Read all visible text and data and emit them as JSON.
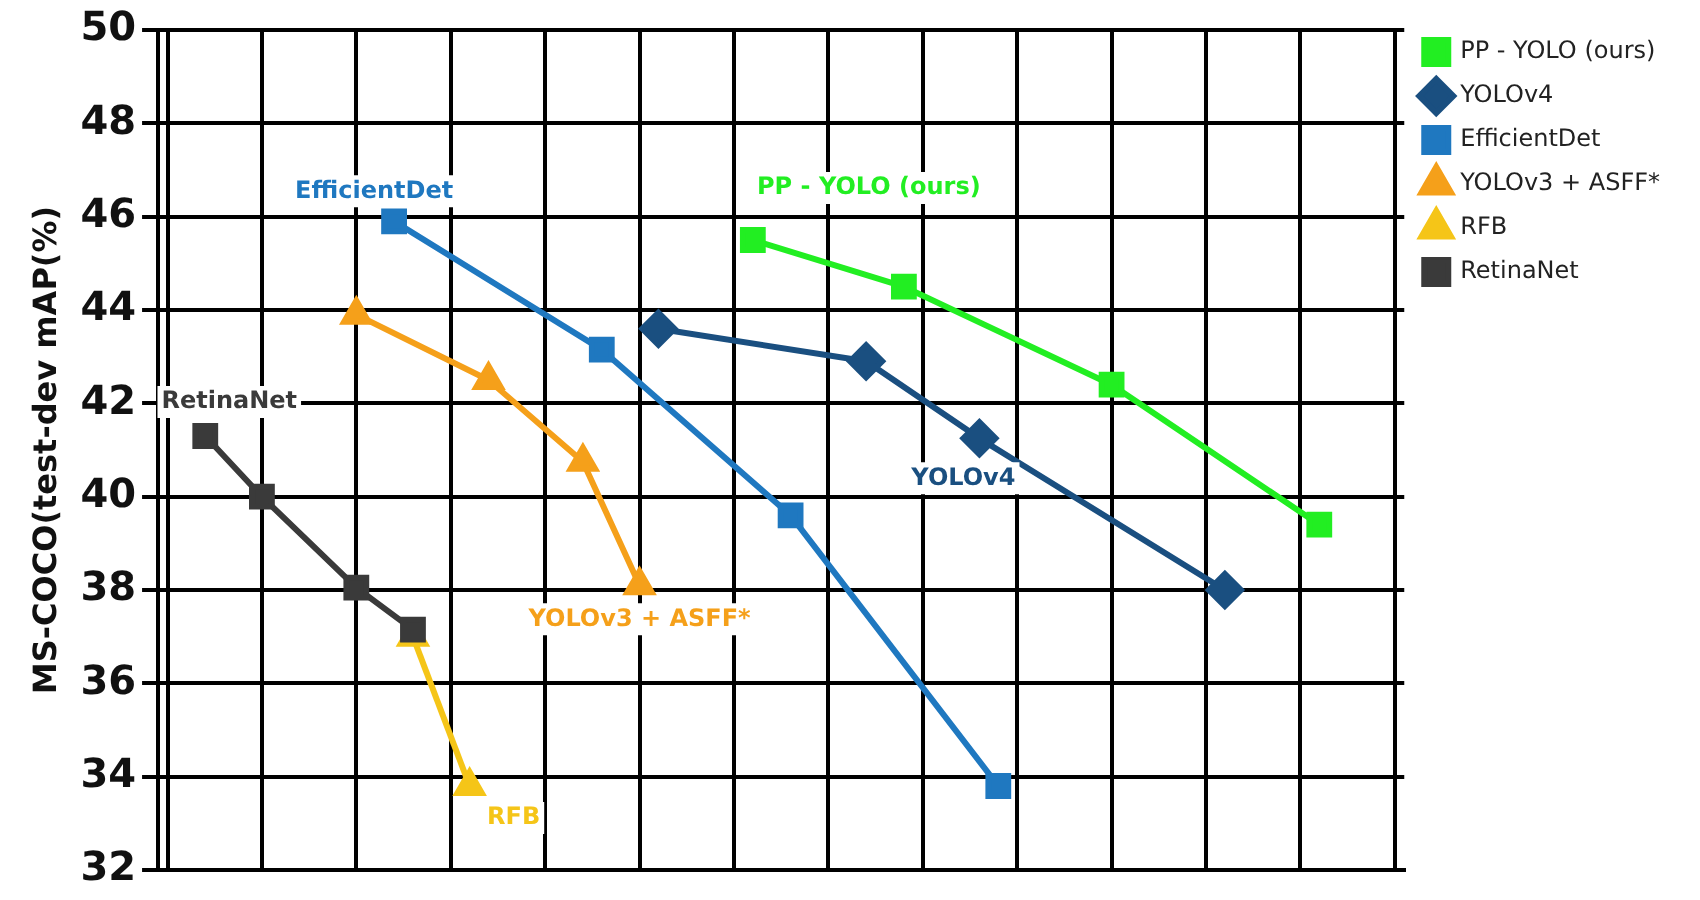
{
  "chart_data": {
    "type": "line",
    "ylabel": "MS-COCO(test-dev mAP(%)",
    "categories": [
      null,
      null,
      null,
      null,
      null,
      null,
      null,
      null,
      null,
      null,
      null,
      null,
      null,
      null,
      null,
      null,
      null,
      null,
      null,
      null,
      null,
      null,
      null,
      null,
      null,
      null,
      null,
      null,
      null,
      null,
      null,
      null,
      null,
      null,
      null,
      null,
      null,
      null,
      null,
      null,
      null,
      null,
      null,
      null,
      null,
      null,
      null,
      null,
      null,
      null,
      null,
      null,
      null,
      null,
      null,
      null,
      null,
      null,
      null,
      null,
      null,
      null,
      null,
      null,
      null,
      null
    ],
    "ylim": [
      32,
      50
    ],
    "yticks": [
      32,
      34,
      36,
      38,
      40,
      42,
      44,
      46,
      48,
      50
    ],
    "tick_labels": "y",
    "grid": true,
    "legend": "top right",
    "line_style": "solid",
    "series": [
      {
        "name": "PP - YOLO (ours)",
        "color": "#22ee22",
        "marker": "square",
        "values": [
          null,
          null,
          null,
          null,
          null,
          null,
          null,
          null,
          null,
          null,
          null,
          null,
          null,
          null,
          null,
          null,
          null,
          null,
          null,
          null,
          null,
          null,
          null,
          null,
          null,
          null,
          null,
          null,
          null,
          null,
          null,
          45.5,
          null,
          null,
          null,
          null,
          null,
          null,
          null,
          44.5,
          null,
          null,
          null,
          null,
          null,
          null,
          null,
          null,
          null,
          null,
          42.4,
          null,
          null,
          null,
          null,
          null,
          null,
          null,
          null,
          null,
          null,
          39.4,
          null,
          null,
          null,
          null
        ]
      },
      {
        "name": "YOLOv4",
        "color": "#1a4f80",
        "marker": "diamond",
        "values": [
          null,
          null,
          null,
          null,
          null,
          null,
          null,
          null,
          null,
          null,
          null,
          null,
          null,
          null,
          null,
          null,
          null,
          null,
          null,
          null,
          null,
          null,
          null,
          null,
          null,
          null,
          43.6,
          null,
          null,
          null,
          null,
          null,
          null,
          null,
          null,
          null,
          null,
          42.9,
          null,
          null,
          null,
          null,
          null,
          41.25,
          null,
          null,
          null,
          null,
          null,
          null,
          null,
          null,
          null,
          null,
          null,
          null,
          38.0,
          null,
          null,
          null,
          null,
          null,
          null,
          null,
          null,
          null
        ]
      },
      {
        "name": "EfficientDet",
        "color": "#1f78c0",
        "marker": "square",
        "values": [
          null,
          null,
          null,
          null,
          null,
          null,
          null,
          null,
          null,
          null,
          null,
          null,
          45.9,
          null,
          null,
          null,
          null,
          null,
          null,
          null,
          null,
          null,
          null,
          43.15,
          null,
          null,
          null,
          null,
          null,
          null,
          null,
          null,
          null,
          39.6,
          null,
          null,
          null,
          null,
          null,
          null,
          null,
          null,
          null,
          null,
          33.8,
          null,
          null,
          null,
          null,
          null,
          null,
          null,
          null,
          null,
          null,
          null,
          null,
          null,
          null,
          null,
          null,
          null,
          null,
          null,
          null,
          null
        ]
      },
      {
        "name": "YOLOv3 + ASFF*",
        "color": "#f5a01a",
        "marker": "triangle",
        "values": [
          null,
          null,
          null,
          null,
          null,
          null,
          null,
          null,
          null,
          null,
          43.9,
          null,
          null,
          null,
          null,
          null,
          null,
          42.5,
          null,
          null,
          null,
          null,
          40.75,
          null,
          null,
          38.1,
          null,
          null,
          null,
          null,
          null,
          null,
          null,
          null,
          null,
          null,
          null,
          null,
          null,
          null,
          null,
          null,
          null,
          null,
          null,
          null,
          null,
          null,
          null,
          null,
          null,
          null,
          null,
          null,
          null,
          null,
          null,
          null,
          null,
          null,
          null,
          null,
          null,
          null,
          null,
          null
        ]
      },
      {
        "name": "RFB",
        "color": "#f5c518",
        "marker": "triangle",
        "values": [
          null,
          null,
          null,
          null,
          null,
          null,
          null,
          null,
          null,
          null,
          null,
          null,
          null,
          37.0,
          null,
          null,
          33.8,
          null,
          null,
          null,
          null,
          null,
          null,
          null,
          null,
          null,
          null,
          null,
          null,
          null,
          null,
          null,
          null,
          null,
          null,
          null,
          null,
          null,
          null,
          null,
          null,
          null,
          null,
          null,
          null,
          null,
          null,
          null,
          null,
          null,
          null,
          null,
          null,
          null,
          null,
          null,
          null,
          null,
          null,
          null,
          null,
          null,
          null,
          null,
          null,
          null
        ]
      },
      {
        "name": "RetinaNet",
        "color": "#3a3a3a",
        "marker": "square",
        "values": [
          null,
          null,
          41.3,
          null,
          null,
          40.0,
          null,
          null,
          null,
          null,
          38.05,
          null,
          null,
          37.15,
          null,
          null,
          null,
          null,
          null,
          null,
          null,
          null,
          null,
          null,
          null,
          null,
          null,
          null,
          null,
          null,
          null,
          null,
          null,
          null,
          null,
          null,
          null,
          null,
          null,
          null,
          null,
          null,
          null,
          null,
          null,
          null,
          null,
          null,
          null,
          null,
          null,
          null,
          null,
          null,
          null,
          null,
          null,
          null,
          null,
          null,
          null,
          null,
          null,
          null,
          null,
          null
        ]
      }
    ],
    "annotations": [
      "PP - YOLO (ours)",
      "YOLOv4",
      "EfficientDet",
      "YOLOv3 + ASFF*",
      "RFB",
      "RetinaNet"
    ]
  }
}
